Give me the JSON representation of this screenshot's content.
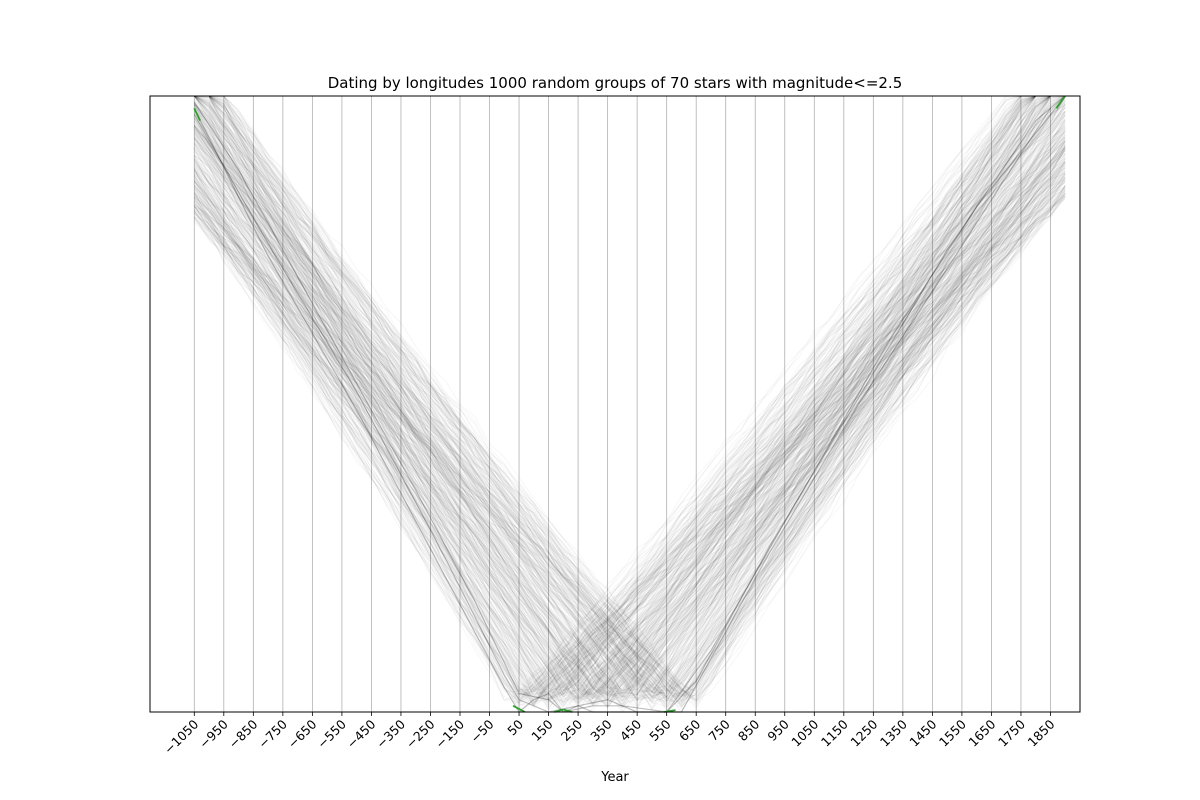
{
  "chart_data": {
    "type": "line",
    "title": "Dating by longitudes 1000 random groups of 70 stars with magnitude<=2.5",
    "xlabel": "Year",
    "ylabel": "",
    "xlim": [
      -1200,
      1950
    ],
    "ylim": [
      0,
      1
    ],
    "x_ticks": [
      -1050,
      -950,
      -850,
      -750,
      -650,
      -550,
      -450,
      -350,
      -250,
      -150,
      -50,
      50,
      150,
      250,
      350,
      450,
      550,
      650,
      750,
      850,
      950,
      1050,
      1150,
      1250,
      1350,
      1450,
      1550,
      1650,
      1750,
      1850
    ],
    "x_tick_labels": [
      "−1050",
      "−950",
      "−850",
      "−750",
      "−650",
      "−550",
      "−450",
      "−350",
      "−250",
      "−150",
      "−50",
      "50",
      "150",
      "250",
      "350",
      "450",
      "550",
      "650",
      "750",
      "850",
      "950",
      "1050",
      "1150",
      "1250",
      "1350",
      "1450",
      "1550",
      "1650",
      "1750",
      "1850"
    ],
    "grid": "vertical",
    "y_ticks_shown": false,
    "line_color": "#000000",
    "highlight_color": "#2ca02c",
    "grid_color": "#b0b0b0",
    "series_count": 1000,
    "series": [
      {
        "x": [
          -1050,
          -800,
          -500,
          -200,
          0,
          50,
          100,
          150,
          200,
          250,
          300,
          400,
          500,
          600,
          900,
          1200,
          1500,
          1850
        ],
        "y": [
          0.98,
          0.74,
          0.49,
          0.22,
          0.04,
          0.0,
          0.02,
          0.03,
          0.0,
          0.01,
          0.0,
          0.0,
          0.0,
          0.0,
          0.26,
          0.5,
          0.72,
          0.98
        ]
      },
      {
        "x": [
          -1050,
          -800,
          -500,
          -200,
          0,
          50,
          150,
          250,
          350,
          450,
          550,
          650,
          900,
          1200,
          1500,
          1800,
          1900
        ],
        "y": [
          0.97,
          0.76,
          0.52,
          0.25,
          0.06,
          0.02,
          0.0,
          0.01,
          0.02,
          0.0,
          0.0,
          0.05,
          0.27,
          0.51,
          0.75,
          0.96,
          1.0
        ]
      },
      {
        "x": [
          -1050,
          -900,
          -600,
          -300,
          -100,
          50,
          150,
          200,
          300,
          400,
          550,
          700,
          1000,
          1300,
          1600,
          1900
        ],
        "y": [
          0.99,
          0.88,
          0.62,
          0.36,
          0.18,
          0.03,
          0.02,
          0.0,
          0.01,
          0.01,
          0.0,
          0.1,
          0.35,
          0.6,
          0.82,
          1.0
        ]
      }
    ]
  }
}
